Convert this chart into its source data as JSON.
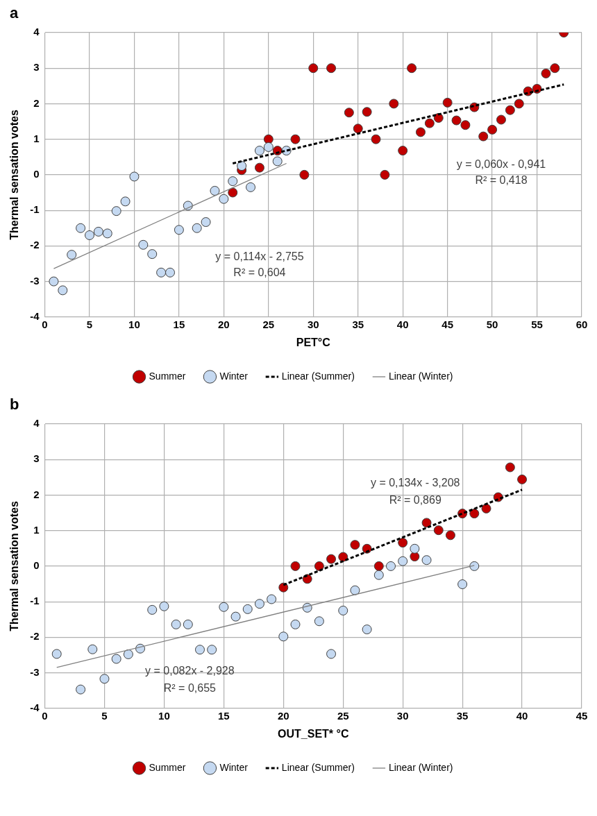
{
  "chart_data": [
    {
      "type": "scatter",
      "title": "a",
      "xlabel": "PET°C",
      "ylabel": "Thermal sensation votes",
      "xlim": [
        0,
        60
      ],
      "xticks": [
        0,
        5,
        10,
        15,
        20,
        25,
        30,
        35,
        40,
        45,
        50,
        55,
        60
      ],
      "ylim": [
        -4,
        4
      ],
      "yticks": [
        -4,
        -3,
        -2,
        -1,
        0,
        1,
        2,
        3,
        4
      ],
      "grid": true,
      "legend": "bottom",
      "series": [
        {
          "name": "Summer",
          "type": "scatter",
          "marker": "circle",
          "color": "#c00000",
          "x": [
            21,
            22,
            24,
            25,
            26,
            28,
            29,
            30,
            32,
            34,
            35,
            36,
            37,
            38,
            39,
            40,
            41,
            42,
            43,
            44,
            45,
            46,
            47,
            48,
            49,
            50,
            51,
            52,
            53,
            54,
            55,
            56,
            57,
            58
          ],
          "values": [
            -0.5,
            0.13,
            0.2,
            1.0,
            0.68,
            1.0,
            0,
            3,
            3,
            1.75,
            1.3,
            1.77,
            1.0,
            0,
            2.0,
            0.68,
            3,
            1.2,
            1.45,
            1.6,
            2.03,
            1.53,
            1.4,
            1.9,
            1.08,
            1.27,
            1.55,
            1.82,
            2.0,
            2.35,
            2.42,
            2.85,
            3.0,
            4.0
          ]
        },
        {
          "name": "Winter",
          "type": "scatter",
          "marker": "circle",
          "color": "#c5d9f1",
          "x": [
            1,
            2,
            3,
            4,
            5,
            6,
            7,
            8,
            9,
            10,
            11,
            12,
            13,
            14,
            15,
            16,
            17,
            18,
            19,
            20,
            21,
            22,
            23,
            24,
            25,
            26,
            27
          ],
          "values": [
            -3.0,
            -3.25,
            -2.25,
            -1.5,
            -1.7,
            -1.6,
            -1.65,
            -1.02,
            -0.75,
            -0.05,
            -1.97,
            -2.23,
            -2.75,
            -2.75,
            -1.55,
            -0.87,
            -1.5,
            -1.33,
            -0.45,
            -0.68,
            -0.18,
            0.25,
            -0.35,
            0.68,
            0.78,
            0.38,
            0.68
          ]
        },
        {
          "name": "Linear (Summer)",
          "type": "line",
          "color": "#000000",
          "line_style": "dashed",
          "x": [
            21,
            58
          ],
          "values": [
            0.32,
            2.54
          ]
        },
        {
          "name": "Linear (Winter)",
          "type": "line",
          "color": "#808080",
          "line_style": "solid",
          "x": [
            1,
            27
          ],
          "values": [
            -2.64,
            0.32
          ]
        }
      ],
      "annotations": [
        "y = 0,114x - 2,755",
        "R² = 0,604",
        "y = 0,060x - 0,941",
        "R² = 0,418"
      ]
    },
    {
      "type": "scatter",
      "title": "b",
      "xlabel": "OUT_SET* °C",
      "ylabel": "Thermal sensation votes",
      "xlim": [
        0,
        45
      ],
      "xticks": [
        0,
        5,
        10,
        15,
        20,
        25,
        30,
        35,
        40,
        45
      ],
      "ylim": [
        -4,
        4
      ],
      "yticks": [
        -4,
        -3,
        -2,
        -1,
        0,
        1,
        2,
        3,
        4
      ],
      "grid": true,
      "legend": "bottom",
      "series": [
        {
          "name": "Summer",
          "type": "scatter",
          "marker": "circle",
          "color": "#c00000",
          "x": [
            20,
            21,
            22,
            23,
            24,
            25,
            26,
            27,
            28,
            30,
            31,
            32,
            33,
            34,
            35,
            36,
            37,
            38,
            39,
            40
          ],
          "values": [
            -0.6,
            0,
            -0.36,
            0,
            0.2,
            0.26,
            0.6,
            0.49,
            0,
            0.66,
            0.27,
            1.22,
            1.01,
            0.87,
            1.48,
            1.48,
            1.62,
            1.94,
            2.78,
            2.44
          ]
        },
        {
          "name": "Winter",
          "type": "scatter",
          "marker": "circle",
          "color": "#c5d9f1",
          "x": [
            1,
            3,
            4,
            5,
            6,
            7,
            8,
            9,
            10,
            11,
            12,
            13,
            14,
            15,
            16,
            17,
            18,
            19,
            20,
            21,
            22,
            23,
            24,
            25,
            26,
            27,
            28,
            29,
            30,
            31,
            32,
            35,
            36
          ],
          "values": [
            -2.47,
            -3.47,
            -2.34,
            -3.17,
            -2.61,
            -2.48,
            -2.32,
            -1.23,
            -1.13,
            -1.64,
            -1.64,
            -2.35,
            -2.35,
            -1.15,
            -1.42,
            -1.21,
            -1.06,
            -0.93,
            -1.98,
            -1.64,
            -1.17,
            -1.55,
            -2.47,
            -1.25,
            -0.68,
            -1.78,
            -0.25,
            0,
            0.14,
            0.49,
            0.17,
            -0.51,
            0
          ]
        },
        {
          "name": "Linear (Summer)",
          "type": "line",
          "color": "#000000",
          "line_style": "dashed",
          "x": [
            20,
            40
          ],
          "values": [
            -0.53,
            2.15
          ]
        },
        {
          "name": "Linear (Winter)",
          "type": "line",
          "color": "#808080",
          "line_style": "solid",
          "x": [
            1,
            36
          ],
          "values": [
            -2.85,
            0.02
          ]
        }
      ],
      "annotations": [
        "y = 0,134x - 3,208",
        "R² = 0,869",
        "y = 0,082x - 2,928",
        "R² = 0,655"
      ]
    }
  ]
}
